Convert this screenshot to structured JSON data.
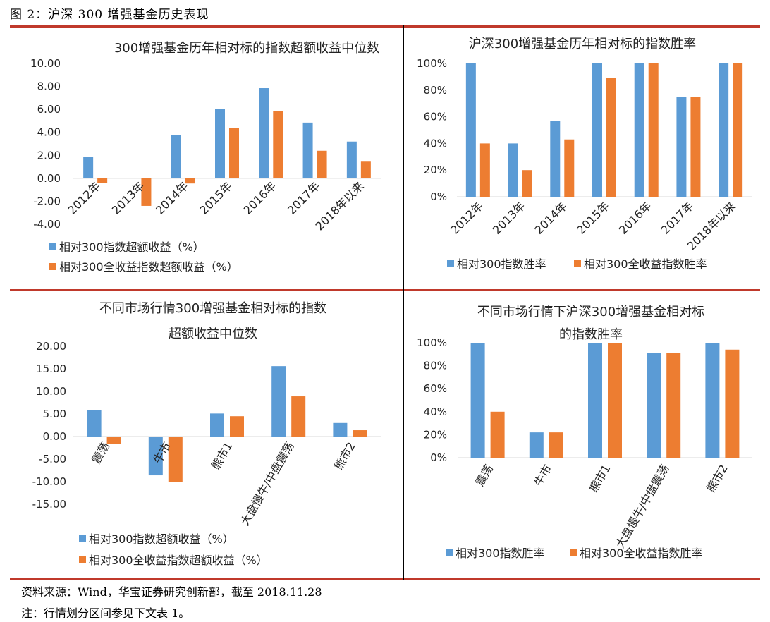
{
  "figure_title": "图 2：沪深 300 增强基金历史表现",
  "source_note": "资料来源：Wind，华宝证券研究创新部，截至 2018.11.28",
  "footnote": "注：行情划分区间参见下文表 1。",
  "colors": {
    "blue": "#5b9bd5",
    "orange": "#ed7d31",
    "rule": "#c0392b"
  },
  "chart_data": [
    {
      "type": "bar",
      "title": "300增强基金历年相对标的指数超额收益中位数",
      "categories": [
        "2012年",
        "2013年",
        "2014年",
        "2015年",
        "2016年",
        "2017年",
        "2018年以来"
      ],
      "series": [
        {
          "name": "相对300指数超额收益（%）",
          "values": [
            1.85,
            0.0,
            3.75,
            6.05,
            7.85,
            4.85,
            3.2
          ]
        },
        {
          "name": "相对300全收益指数超额收益（%）",
          "values": [
            -0.4,
            -2.4,
            -0.45,
            4.4,
            5.85,
            2.4,
            1.45
          ]
        }
      ],
      "ylim": [
        -4,
        10
      ],
      "yticks": [
        "10.00",
        "8.00",
        "6.00",
        "4.00",
        "2.00",
        "0.00",
        "-2.00",
        "-4.00"
      ],
      "legend_position": "bottom-left",
      "grid": false
    },
    {
      "type": "bar",
      "title": "沪深300增强基金历年相对标的指数胜率",
      "categories": [
        "2012年",
        "2013年",
        "2014年",
        "2015年",
        "2016年",
        "2017年",
        "2018年以来"
      ],
      "series": [
        {
          "name": "相对300指数胜率",
          "values": [
            100,
            40,
            57,
            100,
            100,
            75,
            100
          ]
        },
        {
          "name": "相对300全收益指数胜率",
          "values": [
            40,
            20,
            43,
            89,
            100,
            75,
            100
          ]
        }
      ],
      "ylim": [
        0,
        100
      ],
      "yticks": [
        "100%",
        "80%",
        "60%",
        "40%",
        "20%",
        "0%"
      ],
      "legend_position": "bottom",
      "grid": false
    },
    {
      "type": "bar",
      "title": "不同市场行情300增强基金相对标的指数超额收益中位数",
      "title_lines": [
        "不同市场行情300增强基金相对标的指数",
        "超额收益中位数"
      ],
      "categories": [
        "震荡",
        "牛市",
        "熊市1",
        "大盘慢牛/中盘震荡",
        "熊市2"
      ],
      "series": [
        {
          "name": "相对300指数超额收益（%）",
          "values": [
            5.8,
            -8.6,
            5.1,
            15.6,
            3.0
          ]
        },
        {
          "name": "相对300全收益指数超额收益（%）",
          "values": [
            -1.6,
            -10.0,
            4.5,
            8.9,
            1.4
          ]
        }
      ],
      "ylim": [
        -15,
        20
      ],
      "yticks": [
        "20.00",
        "15.00",
        "10.00",
        "5.00",
        "0.00",
        "-5.00",
        "-10.00",
        "-15.00"
      ],
      "legend_position": "bottom-left",
      "grid": false
    },
    {
      "type": "bar",
      "title": "不同市场行情下沪深300增强基金相对标的指数胜率",
      "title_lines": [
        "不同市场行情下沪深300增强基金相对标",
        "的指数胜率"
      ],
      "categories": [
        "震荡",
        "牛市",
        "熊市1",
        "大盘慢牛/中盘震荡",
        "熊市2"
      ],
      "series": [
        {
          "name": "相对300指数胜率",
          "values": [
            100,
            22,
            100,
            91,
            100
          ]
        },
        {
          "name": "相对300全收益指数胜率",
          "values": [
            40,
            22,
            100,
            91,
            94
          ]
        }
      ],
      "ylim": [
        0,
        100
      ],
      "yticks": [
        "100%",
        "80%",
        "60%",
        "40%",
        "20%",
        "0%"
      ],
      "legend_position": "bottom",
      "grid": false
    }
  ]
}
